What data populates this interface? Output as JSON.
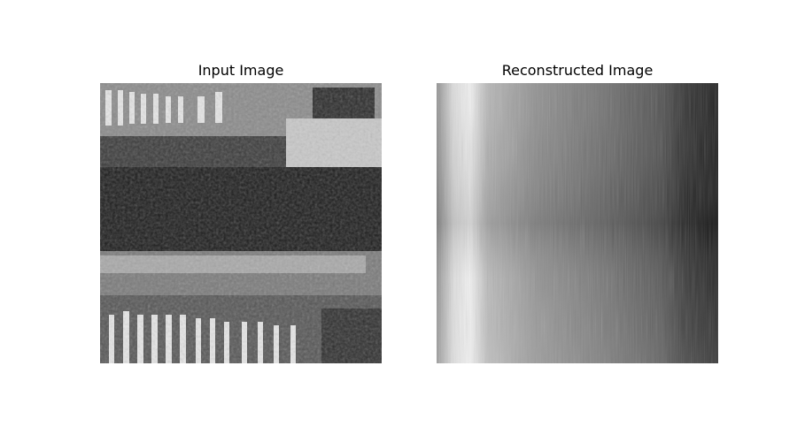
{
  "figure": {
    "panels": [
      {
        "title": "Input Image",
        "image": "grayscale input image of a building facade"
      },
      {
        "title": "Reconstructed Image",
        "image": "grayscale reconstructed image"
      }
    ],
    "colors": {
      "background": "#ffffff",
      "text": "#000000"
    }
  }
}
